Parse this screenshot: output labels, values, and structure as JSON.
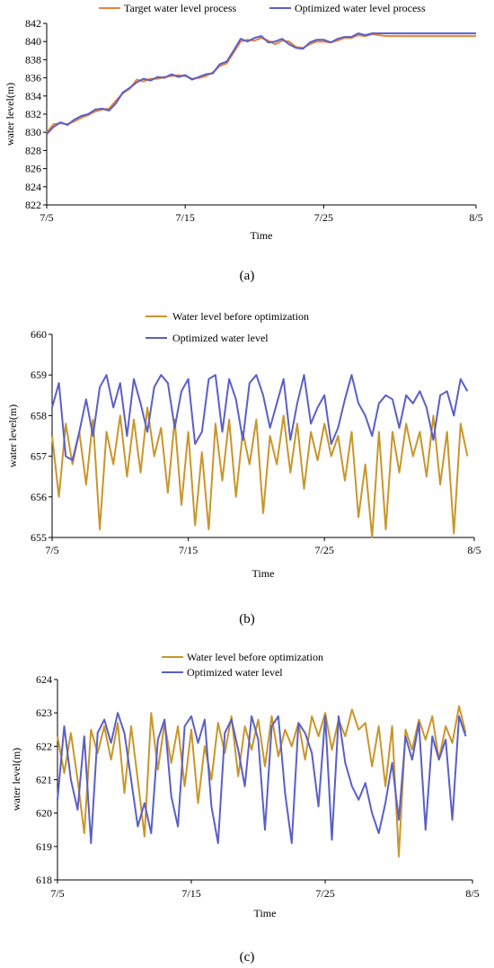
{
  "chart_data": [
    {
      "type": "line",
      "caption": "(a)",
      "xlabel": "Time",
      "ylabel": "water level(m)",
      "x_tick_labels": [
        "7/5",
        "7/15",
        "7/25",
        "8/5"
      ],
      "x_tick_days": [
        0,
        10,
        20,
        31
      ],
      "xlim": [
        0,
        31
      ],
      "ylim": [
        822,
        842
      ],
      "yticks": [
        822,
        824,
        826,
        828,
        830,
        832,
        834,
        836,
        838,
        840,
        842
      ],
      "legend_position": "top",
      "series": [
        {
          "name": "Target water level process",
          "color": "#E8843A",
          "x": [
            0,
            0.5,
            1,
            1.5,
            2,
            2.5,
            3,
            3.5,
            4,
            4.5,
            5,
            5.5,
            6,
            6.5,
            7,
            7.5,
            8,
            8.5,
            9,
            9.5,
            10,
            10.5,
            11,
            11.5,
            12,
            12.5,
            13,
            13.5,
            14,
            14.5,
            15,
            15.5,
            16,
            16.5,
            17,
            17.5,
            18,
            18.5,
            19,
            19.5,
            20,
            20.5,
            21,
            21.5,
            22,
            22.5,
            23,
            23.5,
            24,
            24.5,
            25,
            25.5,
            26,
            26.5,
            27,
            27.5,
            28,
            28.5,
            29,
            29.5,
            30,
            30.5,
            31
          ],
          "values": [
            830.0,
            830.9,
            831.0,
            830.9,
            831.2,
            831.6,
            831.9,
            832.3,
            832.5,
            832.6,
            833.5,
            834.3,
            834.8,
            835.8,
            835.6,
            835.9,
            835.9,
            836.1,
            836.2,
            836.3,
            836.2,
            835.9,
            836.0,
            836.2,
            836.6,
            837.3,
            837.6,
            838.8,
            840.0,
            840.2,
            840.1,
            840.4,
            840.1,
            839.7,
            840.1,
            840.0,
            839.4,
            839.3,
            839.7,
            840.0,
            840.0,
            839.9,
            840.1,
            840.4,
            840.4,
            840.7,
            840.6,
            840.8,
            840.7,
            840.6,
            840.6,
            840.6,
            840.6,
            840.6,
            840.6,
            840.6,
            840.6,
            840.6,
            840.6,
            840.6,
            840.6,
            840.6,
            840.6
          ]
        },
        {
          "name": "Optimized water level process",
          "color": "#5B5FC7",
          "x": [
            0,
            0.5,
            1,
            1.5,
            2,
            2.5,
            3,
            3.5,
            4,
            4.5,
            5,
            5.5,
            6,
            6.5,
            7,
            7.5,
            8,
            8.5,
            9,
            9.5,
            10,
            10.5,
            11,
            11.5,
            12,
            12.5,
            13,
            13.5,
            14,
            14.5,
            15,
            15.5,
            16,
            16.5,
            17,
            17.5,
            18,
            18.5,
            19,
            19.5,
            20,
            20.5,
            21,
            21.5,
            22,
            22.5,
            23,
            23.5,
            24,
            24.5,
            25,
            25.5,
            26,
            26.5,
            27,
            27.5,
            28,
            28.5,
            29,
            29.5,
            30,
            30.5,
            31
          ],
          "values": [
            829.8,
            830.6,
            831.1,
            830.8,
            831.4,
            831.8,
            832.0,
            832.5,
            832.6,
            832.4,
            833.2,
            834.4,
            834.9,
            835.5,
            835.9,
            835.7,
            836.1,
            836.0,
            836.4,
            836.1,
            836.3,
            835.8,
            836.1,
            836.4,
            836.5,
            837.5,
            837.8,
            839.0,
            840.3,
            840.0,
            840.4,
            840.6,
            839.9,
            840.0,
            840.3,
            839.7,
            839.3,
            839.2,
            839.9,
            840.2,
            840.2,
            839.9,
            840.3,
            840.5,
            840.5,
            840.9,
            840.7,
            840.9,
            840.9,
            840.9,
            840.9,
            840.9,
            840.9,
            840.9,
            840.9,
            840.9,
            840.9,
            840.9,
            840.9,
            840.9,
            840.9,
            840.9,
            840.9
          ]
        }
      ]
    },
    {
      "type": "line",
      "caption": "(b)",
      "xlabel": "Time",
      "ylabel": "water level(m)",
      "x_tick_labels": [
        "7/5",
        "7/15",
        "7/25",
        "8/5"
      ],
      "x_tick_days": [
        0,
        10,
        20,
        31
      ],
      "xlim": [
        0,
        31
      ],
      "ylim": [
        655,
        660
      ],
      "yticks": [
        655,
        656,
        657,
        658,
        659,
        660
      ],
      "legend_position": "top",
      "series": [
        {
          "name": "Water level before optimization",
          "color": "#C9962B",
          "x": [
            0,
            0.5,
            1,
            1.5,
            2,
            2.5,
            3,
            3.5,
            4,
            4.5,
            5,
            5.5,
            6,
            6.5,
            7,
            7.5,
            8,
            8.5,
            9,
            9.5,
            10,
            10.5,
            11,
            11.5,
            12,
            12.5,
            13,
            13.5,
            14,
            14.5,
            15,
            15.5,
            16,
            16.5,
            17,
            17.5,
            18,
            18.5,
            19,
            19.5,
            20,
            20.5,
            21,
            21.5,
            22,
            22.5,
            23,
            23.5,
            24,
            24.5,
            25,
            25.5,
            26,
            26.5,
            27,
            27.5,
            28,
            28.5,
            29,
            29.5,
            30,
            30.5
          ],
          "values": [
            657.5,
            656.0,
            657.8,
            656.8,
            657.6,
            656.3,
            657.9,
            655.2,
            657.6,
            656.8,
            658.0,
            656.5,
            657.9,
            656.6,
            658.2,
            657.0,
            657.7,
            656.1,
            657.9,
            655.8,
            657.6,
            655.3,
            657.1,
            655.2,
            657.8,
            656.4,
            657.9,
            656.0,
            657.6,
            656.8,
            657.9,
            655.6,
            657.5,
            656.8,
            658.0,
            656.6,
            657.8,
            656.2,
            657.6,
            656.9,
            657.8,
            657.0,
            657.5,
            656.4,
            657.6,
            655.5,
            656.8,
            655.0,
            657.6,
            655.2,
            657.6,
            656.6,
            657.8,
            657.0,
            657.6,
            656.5,
            658.0,
            656.3,
            657.6,
            655.1,
            657.8,
            657.0
          ]
        },
        {
          "name": "Optimized water level",
          "color": "#5B5FC7",
          "x": [
            0,
            0.5,
            1,
            1.5,
            2,
            2.5,
            3,
            3.5,
            4,
            4.5,
            5,
            5.5,
            6,
            6.5,
            7,
            7.5,
            8,
            8.5,
            9,
            9.5,
            10,
            10.5,
            11,
            11.5,
            12,
            12.5,
            13,
            13.5,
            14,
            14.5,
            15,
            15.5,
            16,
            16.5,
            17,
            17.5,
            18,
            18.5,
            19,
            19.5,
            20,
            20.5,
            21,
            21.5,
            22,
            22.5,
            23,
            23.5,
            24,
            24.5,
            25,
            25.5,
            26,
            26.5,
            27,
            27.5,
            28,
            28.5,
            29,
            29.5,
            30,
            30.5
          ],
          "values": [
            658.2,
            658.8,
            657.0,
            656.9,
            657.6,
            658.4,
            657.5,
            658.7,
            659.0,
            658.2,
            658.8,
            657.5,
            658.9,
            658.3,
            657.6,
            658.7,
            659.0,
            658.8,
            657.7,
            658.6,
            658.9,
            657.3,
            657.6,
            658.9,
            659.0,
            657.6,
            658.9,
            658.4,
            657.4,
            658.8,
            659.0,
            658.5,
            657.7,
            658.3,
            658.9,
            657.4,
            658.3,
            659.0,
            657.8,
            658.2,
            658.5,
            657.3,
            657.7,
            658.4,
            659.0,
            658.3,
            658.0,
            657.5,
            658.3,
            658.5,
            658.4,
            657.7,
            658.5,
            658.3,
            658.6,
            658.2,
            657.4,
            658.5,
            658.6,
            658.0,
            658.9,
            658.6
          ]
        }
      ]
    },
    {
      "type": "line",
      "caption": "(c)",
      "xlabel": "Time",
      "ylabel": "water level(m)",
      "x_tick_labels": [
        "7/5",
        "7/15",
        "7/25",
        "8/5"
      ],
      "x_tick_days": [
        0,
        10,
        20,
        31
      ],
      "xlim": [
        0,
        31
      ],
      "ylim": [
        618,
        624
      ],
      "yticks": [
        618,
        619,
        620,
        621,
        622,
        623,
        624
      ],
      "legend_position": "top",
      "series": [
        {
          "name": "Water level before optimization",
          "color": "#C9962B",
          "x": [
            0,
            0.5,
            1,
            1.5,
            2,
            2.5,
            3,
            3.5,
            4,
            4.5,
            5,
            5.5,
            6,
            6.5,
            7,
            7.5,
            8,
            8.5,
            9,
            9.5,
            10,
            10.5,
            11,
            11.5,
            12,
            12.5,
            13,
            13.5,
            14,
            14.5,
            15,
            15.5,
            16,
            16.5,
            17,
            17.5,
            18,
            18.5,
            19,
            19.5,
            20,
            20.5,
            21,
            21.5,
            22,
            22.5,
            23,
            23.5,
            24,
            24.5,
            25,
            25.5,
            26,
            26.5,
            27,
            27.5,
            28,
            28.5,
            29,
            29.5,
            30,
            30.5
          ],
          "values": [
            622.3,
            621.2,
            622.4,
            621.0,
            619.4,
            622.5,
            621.8,
            622.6,
            621.6,
            622.7,
            620.6,
            622.6,
            621.0,
            619.3,
            623.0,
            621.3,
            622.7,
            621.5,
            622.6,
            620.8,
            622.5,
            620.3,
            622.0,
            621.0,
            622.7,
            621.8,
            622.9,
            621.1,
            622.6,
            621.9,
            622.8,
            621.4,
            622.9,
            621.7,
            622.5,
            622.0,
            622.7,
            621.6,
            622.9,
            622.3,
            623.0,
            621.9,
            622.8,
            622.3,
            623.1,
            622.5,
            622.7,
            621.4,
            622.6,
            620.8,
            622.6,
            618.7,
            622.5,
            621.9,
            622.8,
            622.2,
            622.9,
            621.6,
            622.6,
            622.1,
            623.2,
            622.4
          ]
        },
        {
          "name": "Optimized water level",
          "color": "#5B5FC7",
          "x": [
            0,
            0.5,
            1,
            1.5,
            2,
            2.5,
            3,
            3.5,
            4,
            4.5,
            5,
            5.5,
            6,
            6.5,
            7,
            7.5,
            8,
            8.5,
            9,
            9.5,
            10,
            10.5,
            11,
            11.5,
            12,
            12.5,
            13,
            13.5,
            14,
            14.5,
            15,
            15.5,
            16,
            16.5,
            17,
            17.5,
            18,
            18.5,
            19,
            19.5,
            20,
            20.5,
            21,
            21.5,
            22,
            22.5,
            23,
            23.5,
            24,
            24.5,
            25,
            25.5,
            26,
            26.5,
            27,
            27.5,
            28,
            28.5,
            29,
            29.5,
            30,
            30.5
          ],
          "values": [
            620.4,
            622.6,
            621.0,
            620.1,
            622.3,
            619.1,
            622.4,
            622.8,
            622.1,
            623.0,
            622.4,
            621.0,
            619.6,
            620.3,
            619.4,
            622.2,
            622.8,
            620.5,
            619.6,
            622.6,
            622.9,
            622.1,
            622.8,
            620.2,
            619.1,
            622.4,
            622.8,
            621.9,
            620.8,
            622.9,
            622.2,
            619.5,
            622.6,
            622.9,
            620.6,
            619.1,
            622.7,
            622.4,
            621.8,
            620.2,
            622.9,
            619.2,
            622.9,
            621.5,
            620.8,
            620.4,
            620.9,
            620.0,
            619.4,
            620.3,
            621.5,
            619.8,
            622.3,
            621.6,
            622.7,
            619.5,
            622.3,
            621.6,
            622.2,
            619.8,
            622.9,
            622.3
          ]
        }
      ]
    }
  ]
}
